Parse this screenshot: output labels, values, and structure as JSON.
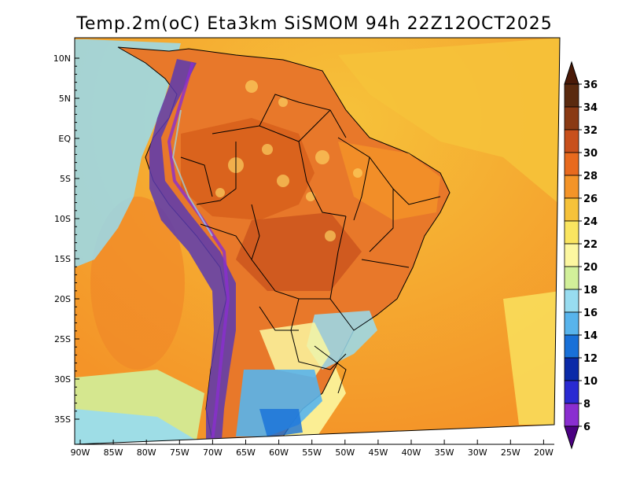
{
  "title": "Temp.2m(oC) Eta3km SiSMOM 94h 22Z12OCT2025",
  "lat_labels": [
    "10N",
    "5N",
    "EQ",
    "5S",
    "10S",
    "15S",
    "20S",
    "25S",
    "30S",
    "35S"
  ],
  "lon_labels": [
    "90W",
    "85W",
    "80W",
    "75W",
    "70W",
    "65W",
    "60W",
    "55W",
    "50W",
    "45W",
    "40W",
    "35W",
    "30W",
    "25W",
    "20W"
  ],
  "colorbar": {
    "labels": [
      "36",
      "34",
      "32",
      "30",
      "28",
      "26",
      "24",
      "22",
      "20",
      "18",
      "16",
      "14",
      "12",
      "10",
      "8",
      "6"
    ],
    "colors": [
      "#5a2a0f",
      "#8a3a14",
      "#c8501c",
      "#e86a1e",
      "#f49428",
      "#f6c23a",
      "#fae560",
      "#fcf7a0",
      "#d2f09a",
      "#98dcf0",
      "#58b4ec",
      "#1870d8",
      "#0a2aa8",
      "#2a2ad2",
      "#8a2ed0",
      "#6a0a9a"
    ],
    "top_cap_color": "#4a1a08",
    "bottom_cap_color": "#4b0082"
  },
  "map": {
    "ocean_color": "#f6b640",
    "cold_coast_color": "#b4e6f0",
    "land_color": "#e8782a",
    "amazon_color": "#d8601c",
    "andes_color": "#5a3ab0",
    "south_cold_color": "#3a7ad8",
    "border_color": "#000000"
  }
}
